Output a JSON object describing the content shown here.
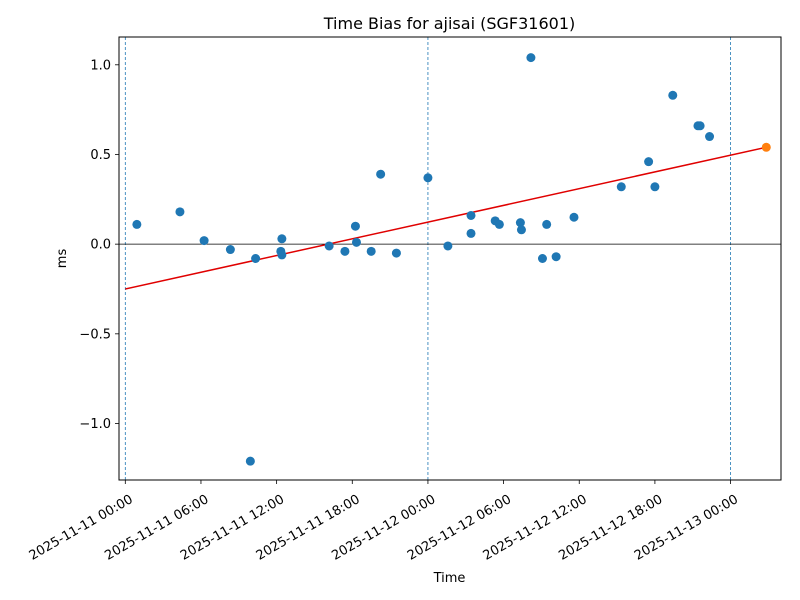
{
  "chart_data": {
    "type": "scatter",
    "title": "Time Bias for ajisai (SGF31601)",
    "xlabel": "Time",
    "ylabel": "ms",
    "xlim": [
      "2025-11-10 23:30",
      "2025-11-13 04:00"
    ],
    "ylim": [
      -1.315,
      1.155
    ],
    "x_ticks": [
      "2025-11-11 00:00",
      "2025-11-11 06:00",
      "2025-11-11 12:00",
      "2025-11-11 18:00",
      "2025-11-12 00:00",
      "2025-11-12 06:00",
      "2025-11-12 12:00",
      "2025-11-12 18:00",
      "2025-11-13 00:00"
    ],
    "y_ticks": [
      {
        "value": -1.0,
        "label": "−1.0"
      },
      {
        "value": -0.5,
        "label": "−0.5"
      },
      {
        "value": 0.0,
        "label": "0.0"
      },
      {
        "value": 0.5,
        "label": "0.5"
      },
      {
        "value": 1.0,
        "label": "1.0"
      }
    ],
    "vertical_lines": [
      "2025-11-11 00:00",
      "2025-11-12 00:00",
      "2025-11-13 00:00"
    ],
    "zero_line": 0,
    "grid": false,
    "series": [
      {
        "type": "scatter",
        "color": "#1f77b4",
        "points": [
          {
            "x": "2025-11-11 00:55",
            "y": 0.11
          },
          {
            "x": "2025-11-11 04:20",
            "y": 0.18
          },
          {
            "x": "2025-11-11 06:15",
            "y": 0.02
          },
          {
            "x": "2025-11-11 08:20",
            "y": -0.03
          },
          {
            "x": "2025-11-11 09:55",
            "y": -1.21
          },
          {
            "x": "2025-11-11 10:20",
            "y": -0.08
          },
          {
            "x": "2025-11-11 12:20",
            "y": -0.04
          },
          {
            "x": "2025-11-11 12:25",
            "y": -0.06
          },
          {
            "x": "2025-11-11 12:25",
            "y": 0.03
          },
          {
            "x": "2025-11-11 16:10",
            "y": -0.01
          },
          {
            "x": "2025-11-11 17:25",
            "y": -0.04
          },
          {
            "x": "2025-11-11 18:15",
            "y": 0.1
          },
          {
            "x": "2025-11-11 18:20",
            "y": 0.01
          },
          {
            "x": "2025-11-11 19:30",
            "y": -0.04
          },
          {
            "x": "2025-11-11 20:15",
            "y": 0.39
          },
          {
            "x": "2025-11-11 21:30",
            "y": -0.05
          },
          {
            "x": "2025-11-12 00:00",
            "y": 0.37
          },
          {
            "x": "2025-11-12 01:35",
            "y": -0.01
          },
          {
            "x": "2025-11-12 03:25",
            "y": 0.16
          },
          {
            "x": "2025-11-12 03:25",
            "y": 0.06
          },
          {
            "x": "2025-11-12 05:20",
            "y": 0.13
          },
          {
            "x": "2025-11-12 05:40",
            "y": 0.11
          },
          {
            "x": "2025-11-12 07:20",
            "y": 0.12
          },
          {
            "x": "2025-11-12 07:25",
            "y": 0.08
          },
          {
            "x": "2025-11-12 08:10",
            "y": 1.04
          },
          {
            "x": "2025-11-12 09:05",
            "y": -0.08
          },
          {
            "x": "2025-11-12 09:25",
            "y": 0.11
          },
          {
            "x": "2025-11-12 10:10",
            "y": -0.07
          },
          {
            "x": "2025-11-12 11:35",
            "y": 0.15
          },
          {
            "x": "2025-11-12 15:20",
            "y": 0.32
          },
          {
            "x": "2025-11-12 17:30",
            "y": 0.46
          },
          {
            "x": "2025-11-12 18:00",
            "y": 0.32
          },
          {
            "x": "2025-11-12 19:25",
            "y": 0.83
          },
          {
            "x": "2025-11-12 21:25",
            "y": 0.66
          },
          {
            "x": "2025-11-12 21:35",
            "y": 0.66
          },
          {
            "x": "2025-11-12 22:20",
            "y": 0.6
          }
        ]
      },
      {
        "type": "scatter",
        "color": "#ff7f0e",
        "points": [
          {
            "x": "2025-11-13 02:50",
            "y": 0.54
          }
        ]
      },
      {
        "type": "line",
        "color": "#e00000",
        "points": [
          {
            "x": "2025-11-11 00:00",
            "y": -0.25
          },
          {
            "x": "2025-11-13 02:50",
            "y": 0.54
          }
        ]
      }
    ]
  }
}
